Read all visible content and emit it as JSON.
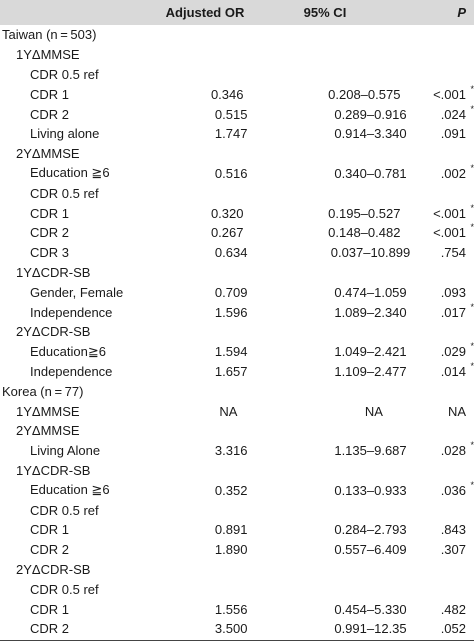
{
  "header": {
    "col1": "",
    "col2": "Adjusted OR",
    "col3": "95% CI",
    "col4": "P"
  },
  "rows": [
    {
      "label": "Taiwan (n = 503)",
      "level": 0,
      "or": "",
      "ci": "",
      "p": "",
      "star": false
    },
    {
      "label": "1YΔMMSE",
      "level": 1,
      "or": "",
      "ci": "",
      "p": "",
      "star": false
    },
    {
      "label": "CDR 0.5 ref",
      "level": 2,
      "or": "",
      "ci": "",
      "p": "",
      "star": false
    },
    {
      "label": "CDR 1",
      "level": 2,
      "or": "0.346",
      "ci": "0.208–0.575",
      "p": "<.001",
      "star": true
    },
    {
      "label": "CDR 2",
      "level": 2,
      "or": "0.515",
      "ci": "0.289–0.916",
      "p": ".024",
      "star": true
    },
    {
      "label": "Living alone",
      "level": 2,
      "or": "1.747",
      "ci": "0.914–3.340",
      "p": ".091",
      "star": false
    },
    {
      "label": "2YΔMMSE",
      "level": 1,
      "or": "",
      "ci": "",
      "p": "",
      "star": false
    },
    {
      "label": "Education ≧6",
      "level": 2,
      "or": "0.516",
      "ci": "0.340–0.781",
      "p": ".002",
      "star": true
    },
    {
      "label": "CDR 0.5 ref",
      "level": 2,
      "or": "",
      "ci": "",
      "p": "",
      "star": false
    },
    {
      "label": "CDR 1",
      "level": 2,
      "or": "0.320",
      "ci": "0.195–0.527",
      "p": "<.001",
      "star": true
    },
    {
      "label": "CDR 2",
      "level": 2,
      "or": "0.267",
      "ci": "0.148–0.482",
      "p": "<.001",
      "star": true
    },
    {
      "label": "CDR 3",
      "level": 2,
      "or": "0.634",
      "ci": "0.037–10.899",
      "p": ".754",
      "star": false
    },
    {
      "label": "1YΔCDR-SB",
      "level": 1,
      "or": "",
      "ci": "",
      "p": "",
      "star": false
    },
    {
      "label": "Gender, Female",
      "level": 2,
      "or": "0.709",
      "ci": "0.474–1.059",
      "p": ".093",
      "star": false
    },
    {
      "label": "Independence",
      "level": 2,
      "or": "1.596",
      "ci": "1.089–2.340",
      "p": ".017",
      "star": true
    },
    {
      "label": "2YΔCDR-SB",
      "level": 1,
      "or": "",
      "ci": "",
      "p": "",
      "star": false
    },
    {
      "label": "Education≧6",
      "level": 2,
      "or": "1.594",
      "ci": "1.049–2.421",
      "p": ".029",
      "star": true
    },
    {
      "label": "Independence",
      "level": 2,
      "or": "1.657",
      "ci": "1.109–2.477",
      "p": ".014",
      "star": true
    },
    {
      "label": "Korea (n = 77)",
      "level": 0,
      "or": "",
      "ci": "",
      "p": "",
      "star": false
    },
    {
      "label": "1YΔMMSE",
      "level": 1,
      "or": "NA",
      "ci": "NA",
      "p": "NA",
      "star": false
    },
    {
      "label": "2YΔMMSE",
      "level": 1,
      "or": "",
      "ci": "",
      "p": "",
      "star": false
    },
    {
      "label": "Living Alone",
      "level": 2,
      "or": "3.316",
      "ci": "1.135–9.687",
      "p": ".028",
      "star": true
    },
    {
      "label": "1YΔCDR-SB",
      "level": 1,
      "or": "",
      "ci": "",
      "p": "",
      "star": false
    },
    {
      "label": "Education ≧6",
      "level": 2,
      "or": "0.352",
      "ci": "0.133–0.933",
      "p": ".036",
      "star": true
    },
    {
      "label": "CDR 0.5 ref",
      "level": 2,
      "or": "",
      "ci": "",
      "p": "",
      "star": false
    },
    {
      "label": "CDR 1",
      "level": 2,
      "or": "0.891",
      "ci": "0.284–2.793",
      "p": ".843",
      "star": false
    },
    {
      "label": "CDR 2",
      "level": 2,
      "or": "1.890",
      "ci": "0.557–6.409",
      "p": ".307",
      "star": false
    },
    {
      "label": "2YΔCDR-SB",
      "level": 1,
      "or": "",
      "ci": "",
      "p": "",
      "star": false
    },
    {
      "label": "CDR 0.5 ref",
      "level": 2,
      "or": "",
      "ci": "",
      "p": "",
      "star": false
    },
    {
      "label": "CDR 1",
      "level": 2,
      "or": "1.556",
      "ci": "0.454–5.330",
      "p": ".482",
      "star": false
    },
    {
      "label": "CDR 2",
      "level": 2,
      "or": "3.500",
      "ci": "0.991–12.35",
      "p": ".052",
      "star": false
    }
  ],
  "star_symbol": "*"
}
